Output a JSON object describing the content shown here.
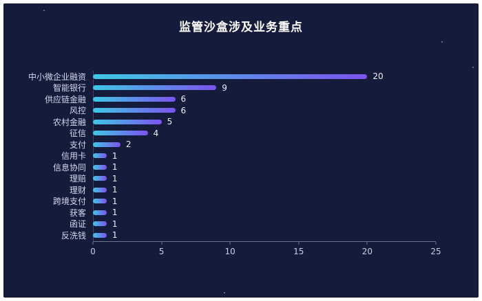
{
  "chart_data": {
    "type": "bar",
    "orientation": "horizontal",
    "title": "监管沙盒涉及业务重点",
    "categories": [
      "中小微企业融资",
      "智能银行",
      "供应链金融",
      "风控",
      "农村金融",
      "征信",
      "支付",
      "信用卡",
      "信息协同",
      "理赔",
      "理财",
      "跨境支付",
      "获客",
      "函证",
      "反洗钱"
    ],
    "values": [
      20,
      9,
      6,
      6,
      5,
      4,
      2,
      1,
      1,
      1,
      1,
      1,
      1,
      1,
      1
    ],
    "xlabel": "",
    "ylabel": "",
    "xlim": [
      0,
      25
    ],
    "x_ticks": [
      0,
      5,
      10,
      15,
      20,
      25
    ],
    "grid": "off",
    "legend": "none"
  },
  "colors": {
    "background": "#151b3b",
    "title": "#ffffff",
    "category_label": "#d4d9ee",
    "value_label": "#f0f2fa",
    "axis_line": "#6e7494",
    "tick_label": "#c9cee2",
    "bar_gradient_start": "#3fc8e4",
    "bar_gradient_end": "#7c53ee"
  }
}
